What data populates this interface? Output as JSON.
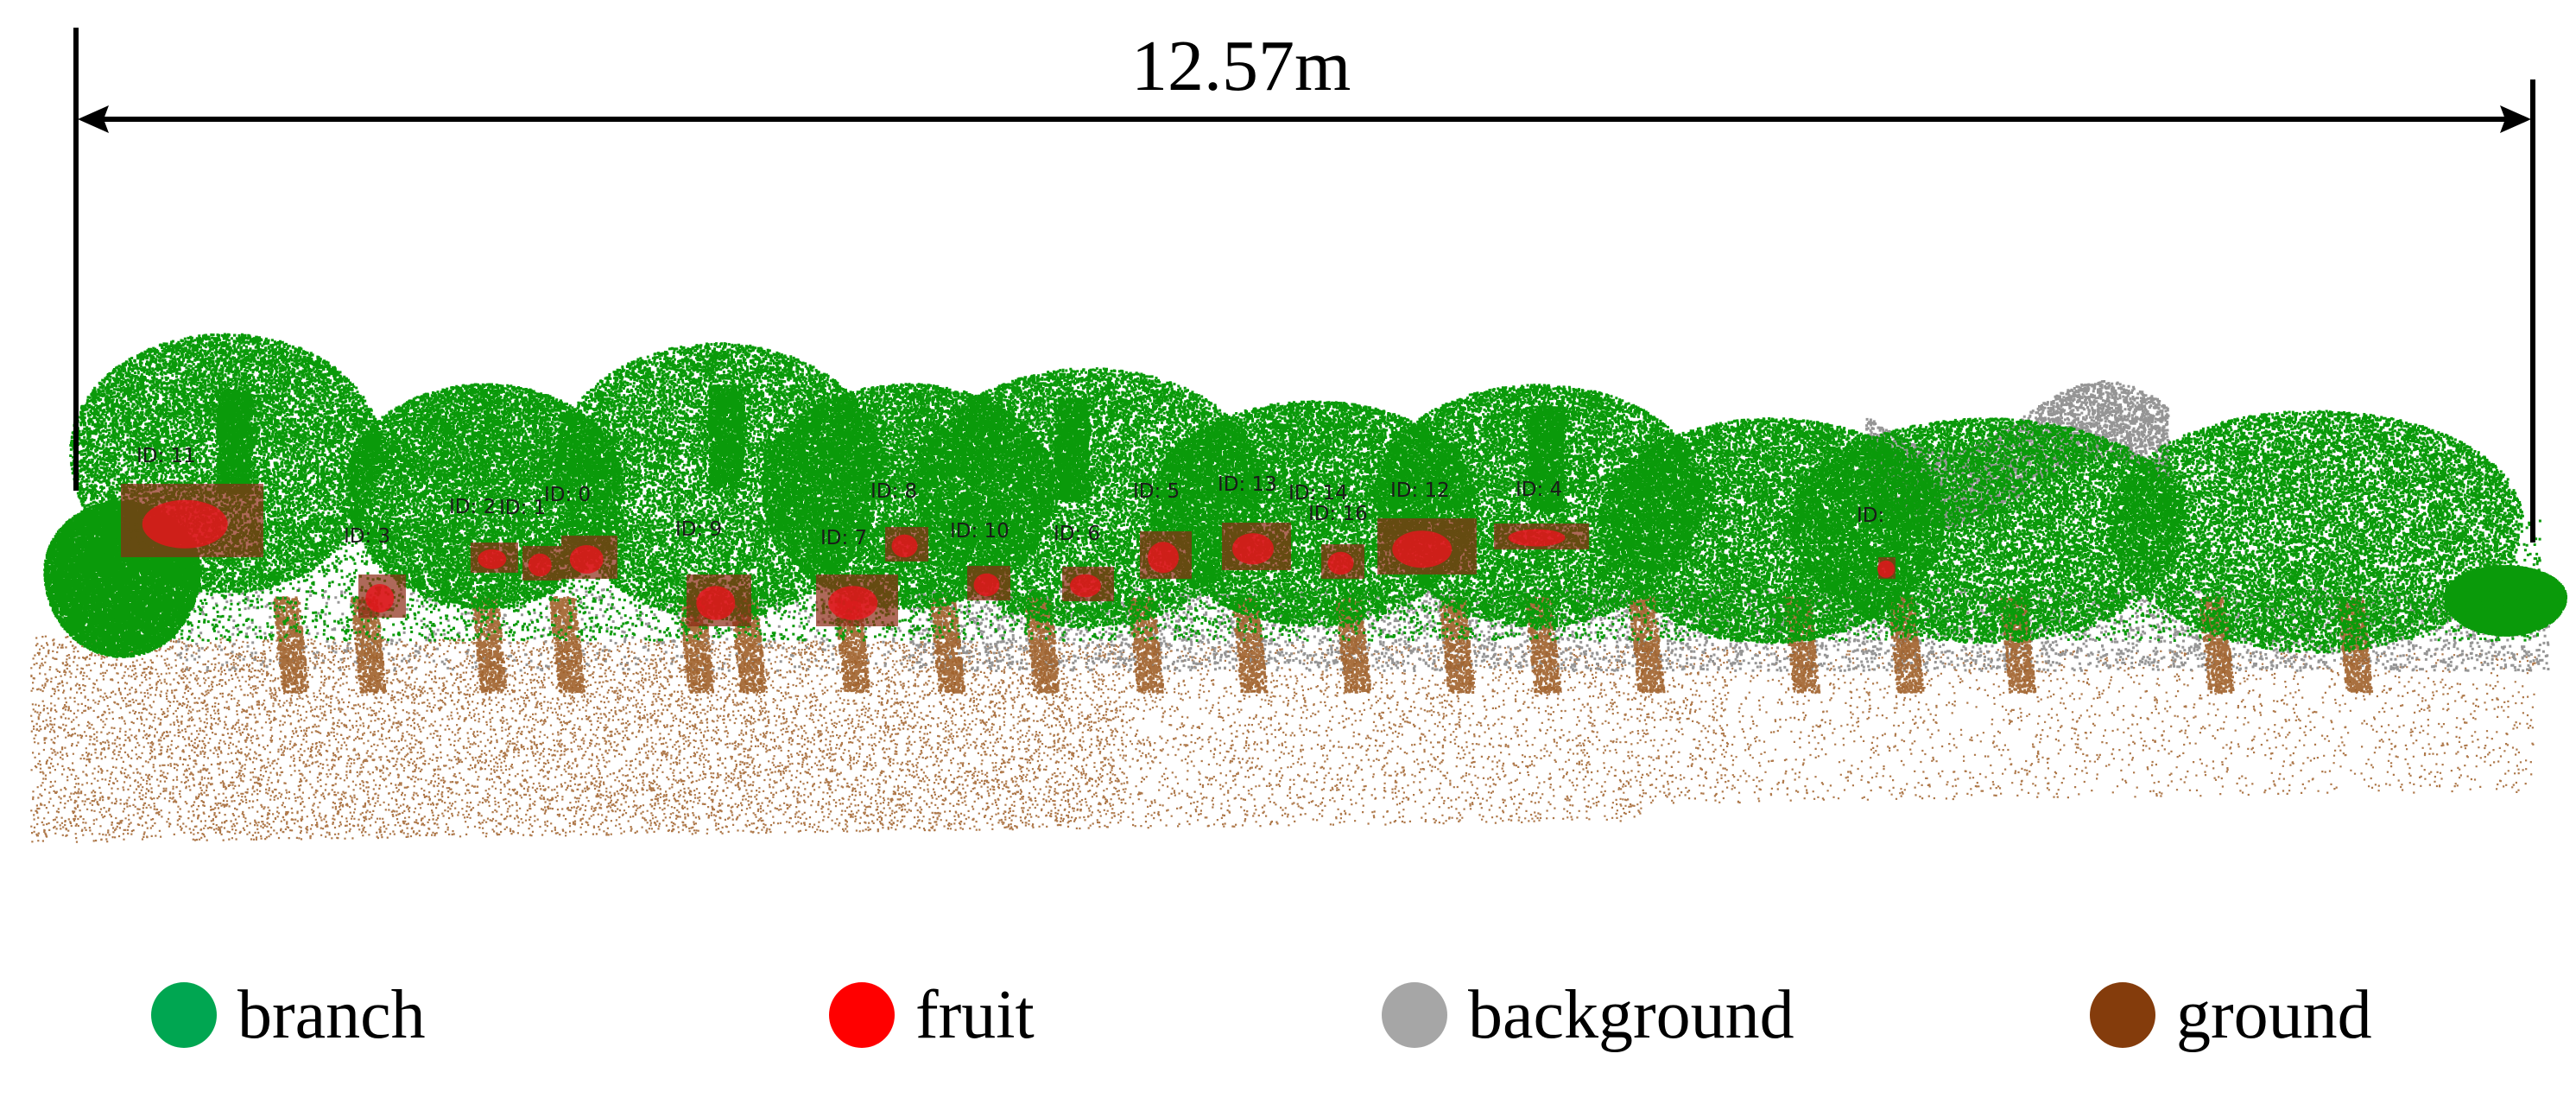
{
  "measurement": {
    "label": "12.57m"
  },
  "fruit_ids": [
    {
      "text": "ID:  11"
    },
    {
      "text": "ID:  3"
    },
    {
      "text": "ID:  2"
    },
    {
      "text": "ID:  1"
    },
    {
      "text": "ID:  0"
    },
    {
      "text": "ID:  9"
    },
    {
      "text": "ID:  7"
    },
    {
      "text": "ID:  8"
    },
    {
      "text": "ID:  10"
    },
    {
      "text": "ID:  6"
    },
    {
      "text": "ID:  5"
    },
    {
      "text": "ID:  13"
    },
    {
      "text": "ID:  16"
    },
    {
      "text": "ID:  14"
    },
    {
      "text": "ID:  12"
    },
    {
      "text": "ID:  4"
    },
    {
      "text": "ID:"
    }
  ],
  "legend": [
    {
      "label": "branch",
      "color": "#00a651",
      "icon": "green-dot-icon"
    },
    {
      "label": "fruit",
      "color": "#ff0000",
      "icon": "red-dot-icon"
    },
    {
      "label": "background",
      "color": "#a6a6a6",
      "icon": "gray-dot-icon"
    },
    {
      "label": "ground",
      "color": "#843c0c",
      "icon": "brown-dot-icon"
    }
  ],
  "colors": {
    "branch": "#0a9a0a",
    "fruit": "#e8141c",
    "fruit_box": "#8b2a14",
    "background": "#8f8f8f",
    "ground": "#a0602a",
    "dimension_line": "#000000"
  }
}
